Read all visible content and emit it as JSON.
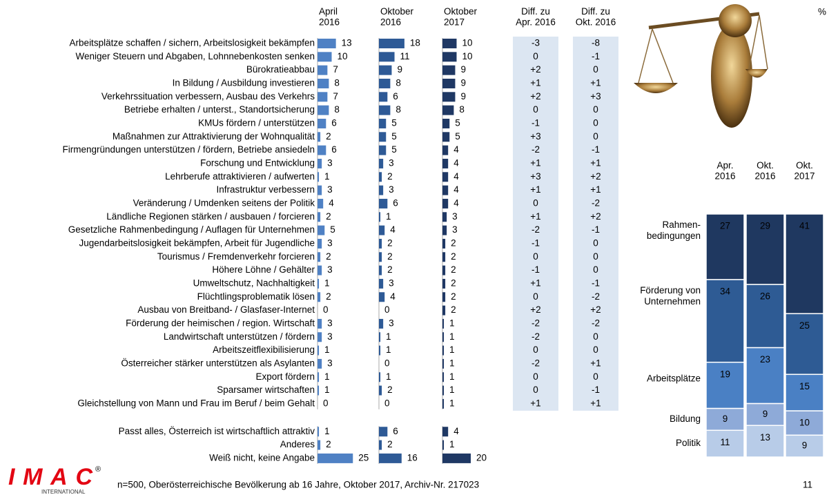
{
  "percent_sign": "%",
  "footer": "n=500, Oberösterreichische Bevölkerung ab 16 Jahre, Oktober 2017, Archiv-Nr. 217023",
  "page_number": "11",
  "logo": {
    "text": "IMAC",
    "registered": "®",
    "sub": "INTERNATIONAL"
  },
  "chart_data": [
    {
      "type": "hbar",
      "categories": [
        "Arbeitsplätze schaffen / sichern, Arbeitslosigkeit bekämpfen",
        "Weniger Steuern und Abgaben, Lohnnebenkosten senken",
        "Bürokratieabbau",
        "In Bildung / Ausbildung investieren",
        "Verkehrssituation verbessern, Ausbau des Verkehrs",
        "Betriebe erhalten / unterst., Standortsicherung",
        "KMUs fördern / unterstützen",
        "Maßnahmen zur Attraktivierung der Wohnqualität",
        "Firmengründungen unterstützen / fördern, Betriebe ansiedeln",
        "Forschung und Entwicklung",
        "Lehrberufe attraktivieren / aufwerten",
        "Infrastruktur verbessern",
        "Veränderung / Umdenken seitens der Politik",
        "Ländliche Regionen stärken / ausbauen / forcieren",
        "Gesetzliche Rahmenbedingung / Auflagen für Unternehmen",
        "Jugendarbeitslosigkeit bekämpfen, Arbeit für Jugendliche",
        "Tourismus / Fremdenverkehr forcieren",
        "Höhere Löhne / Gehälter",
        "Umweltschutz, Nachhaltigkeit",
        "Flüchtlingsproblematik lösen",
        "Ausbau von Breitband- / Glasfaser-Internet",
        "Förderung der heimischen / region. Wirtschaft",
        "Landwirtschaft unterstützen / fördern",
        "Arbeitszeitflexibilisierung",
        "Österreicher stärker unterstützen als Asylanten",
        "Export fördern",
        "Sparsamer wirtschaften",
        "Gleichstellung von Mann und Frau im Beruf / beim Gehalt",
        "Passt alles, Österreich ist wirtschaftlich attraktiv",
        "Anderes",
        "Weiß nicht, keine Angabe"
      ],
      "series": [
        {
          "name": "April\n2016",
          "color": "#4f81c4",
          "values": [
            13,
            10,
            7,
            8,
            7,
            8,
            6,
            2,
            6,
            3,
            1,
            3,
            4,
            2,
            5,
            3,
            2,
            3,
            1,
            2,
            0,
            3,
            3,
            1,
            3,
            1,
            1,
            0,
            1,
            2,
            25
          ]
        },
        {
          "name": "Oktober\n2016",
          "color": "#2e5a96",
          "values": [
            18,
            11,
            9,
            8,
            6,
            8,
            5,
            5,
            5,
            3,
            2,
            3,
            6,
            1,
            4,
            2,
            2,
            2,
            3,
            4,
            0,
            3,
            1,
            1,
            0,
            1,
            2,
            0,
            6,
            2,
            16
          ]
        },
        {
          "name": "Oktober\n2017",
          "color": "#1f3864",
          "values": [
            10,
            10,
            9,
            9,
            9,
            8,
            5,
            5,
            4,
            4,
            4,
            4,
            4,
            3,
            3,
            2,
            2,
            2,
            2,
            2,
            2,
            1,
            1,
            1,
            1,
            1,
            1,
            1,
            4,
            1,
            20
          ]
        }
      ],
      "diff_columns": [
        {
          "name": "Diff. zu\nApr. 2016",
          "values": [
            -3,
            0,
            2,
            1,
            2,
            0,
            -1,
            3,
            -2,
            1,
            3,
            1,
            0,
            1,
            -2,
            -1,
            0,
            -1,
            1,
            0,
            2,
            -2,
            -2,
            0,
            -2,
            0,
            0,
            1,
            null,
            null,
            null
          ],
          "value_labels": [
            "-3",
            "0",
            "+2",
            "+1",
            "+2",
            "0",
            "-1",
            "+3",
            "-2",
            "+1",
            "+3",
            "+1",
            "0",
            "+1",
            "-2",
            "-1",
            "0",
            "-1",
            "+1",
            "0",
            "+2",
            "-2",
            "-2",
            "0",
            "-2",
            "0",
            "0",
            "+1",
            null,
            null,
            null
          ]
        },
        {
          "name": "Diff. zu\nOkt. 2016",
          "values": [
            -8,
            -1,
            0,
            1,
            3,
            0,
            0,
            0,
            -1,
            1,
            2,
            1,
            -2,
            2,
            -1,
            0,
            0,
            0,
            -1,
            -2,
            2,
            -2,
            0,
            0,
            1,
            0,
            -1,
            1,
            null,
            null,
            null
          ],
          "value_labels": [
            "-8",
            "-1",
            "0",
            "+1",
            "+3",
            "0",
            "0",
            "0",
            "-1",
            "+1",
            "+2",
            "+1",
            "-2",
            "+2",
            "-1",
            "0",
            "0",
            "0",
            "-1",
            "-2",
            "+2",
            "-2",
            "0",
            "0",
            "+1",
            "0",
            "-1",
            "+1",
            null,
            null,
            null
          ]
        }
      ],
      "diff_background": "#dce6f2",
      "negative_color": "#e8191e"
    },
    {
      "type": "stacked",
      "categories": [
        "Apr.\n2016",
        "Okt.\n2016",
        "Okt.\n2017"
      ],
      "series": [
        {
          "name": "Rahmen-\nbedingungen",
          "color": "#1f3860",
          "values": [
            27,
            29,
            41
          ]
        },
        {
          "name": "Förderung von\nUnternehmen",
          "color": "#2e5b94",
          "values": [
            34,
            26,
            25
          ]
        },
        {
          "name": "Arbeitsplätze",
          "color": "#4a80c4",
          "values": [
            19,
            23,
            15
          ]
        },
        {
          "name": "Bildung",
          "color": "#8eaad8",
          "values": [
            9,
            9,
            10
          ]
        },
        {
          "name": "Politik",
          "color": "#b8cce8",
          "values": [
            11,
            13,
            9
          ]
        }
      ]
    }
  ]
}
